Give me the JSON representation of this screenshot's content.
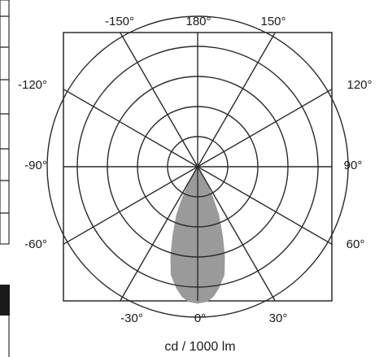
{
  "chart_data": {
    "type": "polar",
    "title": "",
    "unit_label": "cd / 1000 lm",
    "grid": true,
    "rings": 5,
    "spoke_step_deg": 30,
    "angle_labels": {
      "top": [
        "-150°",
        "180°",
        "150°"
      ],
      "left": [
        "-120°",
        "-90°",
        "-60°"
      ],
      "right": [
        "120°",
        "90°",
        "60°"
      ],
      "bottom": [
        "-30°",
        "0°",
        "30°"
      ]
    },
    "series": [
      {
        "color": "#9a9a9a",
        "polar_curve": [
          {
            "angle": -40,
            "r": 0.0
          },
          {
            "angle": -35,
            "r": 0.1
          },
          {
            "angle": -32,
            "r": 0.3
          },
          {
            "angle": -30,
            "r": 0.6
          },
          {
            "angle": -27,
            "r": 1.1
          },
          {
            "angle": -24,
            "r": 1.75
          },
          {
            "angle": -20,
            "r": 2.45
          },
          {
            "angle": -17,
            "r": 3.1
          },
          {
            "angle": -14,
            "r": 3.7
          },
          {
            "angle": -10,
            "r": 4.1
          },
          {
            "angle": -7,
            "r": 4.35
          },
          {
            "angle": -4,
            "r": 4.5
          },
          {
            "angle": 0,
            "r": 4.55
          },
          {
            "angle": 4,
            "r": 4.5
          },
          {
            "angle": 7,
            "r": 4.35
          },
          {
            "angle": 10,
            "r": 4.1
          },
          {
            "angle": 14,
            "r": 3.7
          },
          {
            "angle": 17,
            "r": 3.1
          },
          {
            "angle": 20,
            "r": 2.45
          },
          {
            "angle": 24,
            "r": 1.75
          },
          {
            "angle": 27,
            "r": 1.1
          },
          {
            "angle": 30,
            "r": 0.6
          },
          {
            "angle": 32,
            "r": 0.3
          },
          {
            "angle": 35,
            "r": 0.1
          },
          {
            "angle": 40,
            "r": 0.0
          }
        ]
      }
    ]
  }
}
